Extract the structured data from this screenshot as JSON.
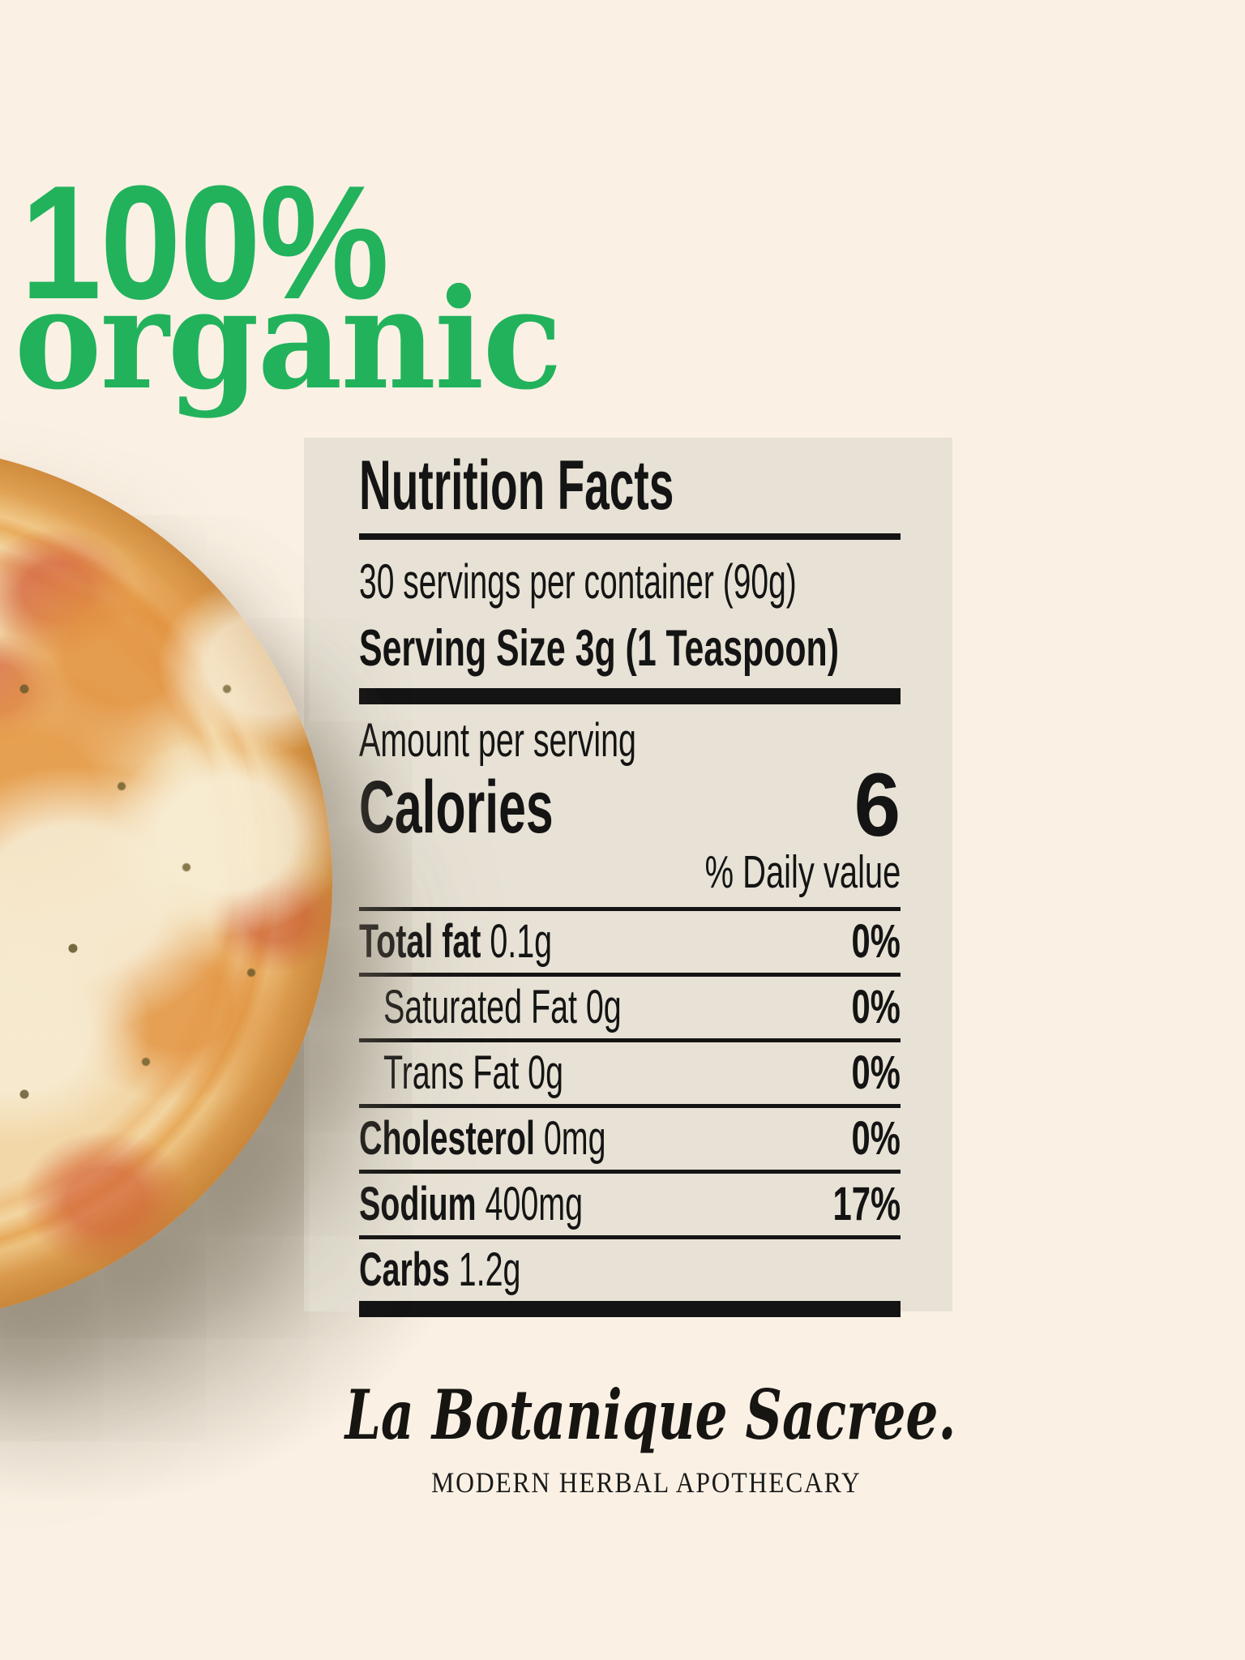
{
  "colors": {
    "page_background": "#FAF1E4",
    "panel_background": "#E7E2D5",
    "accent_green": "#22B25C",
    "text_black": "#141414"
  },
  "headline": {
    "line1": "100%",
    "line2": "organic"
  },
  "nutrition_panel": {
    "title": "Nutrition Facts",
    "servings_line": "30 servings per container (90g)",
    "serving_size_line": "Serving Size 3g (1 Teaspoon)",
    "amount_label": "Amount per serving",
    "calories_label": "Calories",
    "calories_value": "6",
    "daily_value_header": "% Daily value",
    "rows": [
      {
        "label": "Total fat",
        "quantity": "0.1g",
        "percent": "0%",
        "bold": true,
        "indent": false
      },
      {
        "label": "Saturated Fat",
        "quantity": "0g",
        "percent": "0%",
        "bold": false,
        "indent": true
      },
      {
        "label": "Trans Fat",
        "quantity": "0g",
        "percent": "0%",
        "bold": false,
        "indent": true
      },
      {
        "label": "Cholesterol",
        "quantity": "0mg",
        "percent": "0%",
        "bold": true,
        "indent": false
      },
      {
        "label": "Sodium",
        "quantity": "400mg",
        "percent": "17%",
        "bold": true,
        "indent": false
      },
      {
        "label": "Carbs",
        "quantity": "1.2g",
        "percent": "",
        "bold": true,
        "indent": false
      }
    ]
  },
  "footer": {
    "brand_script": "La Botanique Sacree.",
    "tagline": "MODERN HERBAL APOTHECARY"
  },
  "pizza": {
    "description": "margherita pizza photo, cropped at left edge with soft drop shadow"
  }
}
